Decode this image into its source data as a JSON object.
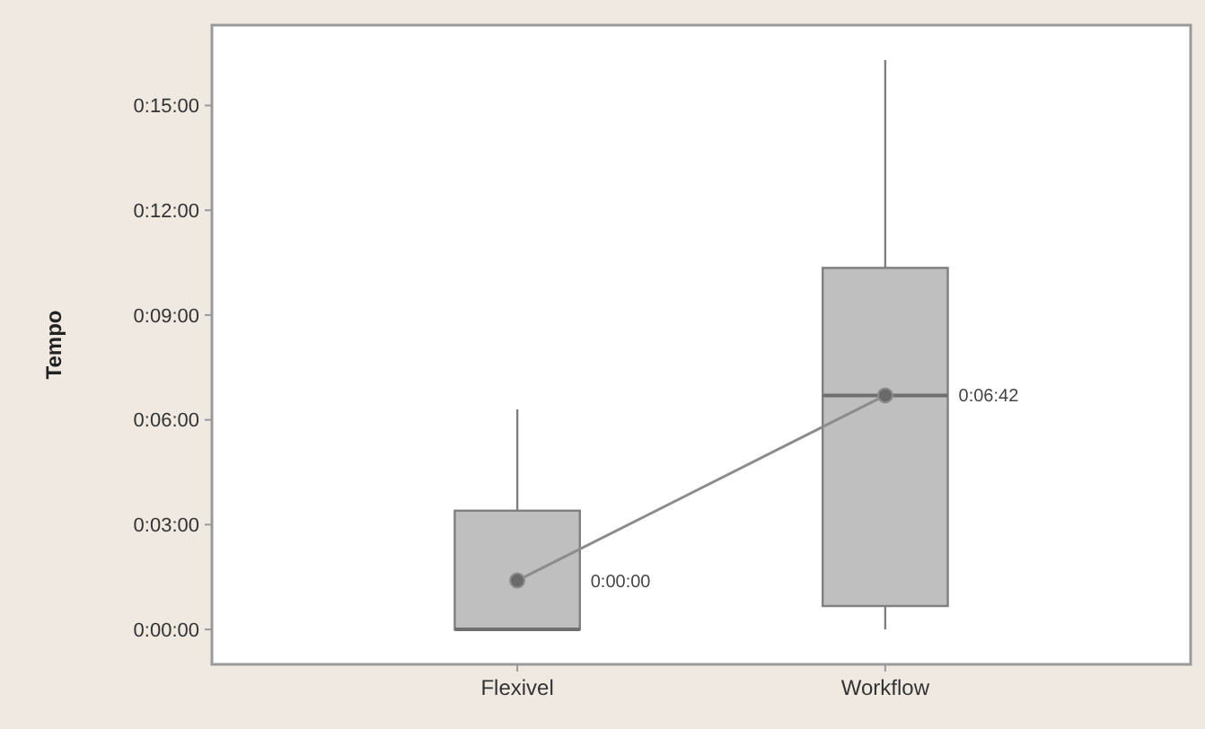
{
  "chart_data": {
    "type": "box",
    "ylabel": "Tempo",
    "categories": [
      "Flexivel",
      "Workflow"
    ],
    "boxes": [
      {
        "low": 0,
        "q1": 0,
        "median": 0,
        "q3": 3.4,
        "high": 6.3
      },
      {
        "low": 0,
        "q1": 0.67,
        "median": 6.7,
        "q3": 10.35,
        "high": 16.3
      }
    ],
    "color": "#bfbfbf",
    "series": [
      {
        "type": "line",
        "x": [
          "Flexivel",
          "Workflow"
        ],
        "values": [
          1.4,
          6.7
        ],
        "color": "#8c8c8c"
      }
    ],
    "marker": "circle",
    "annotations": [
      "0:00:00",
      "0:06:42"
    ],
    "ylim": [
      -1,
      17.3
    ],
    "yticks": [
      {
        "value": 0,
        "label": "0:00:00"
      },
      {
        "value": 3,
        "label": "0:03:00"
      },
      {
        "value": 6,
        "label": "0:06:00"
      },
      {
        "value": 9,
        "label": "0:09:00"
      },
      {
        "value": 12,
        "label": "0:12:00"
      },
      {
        "value": 15,
        "label": "0:15:00"
      }
    ],
    "grid": false
  }
}
